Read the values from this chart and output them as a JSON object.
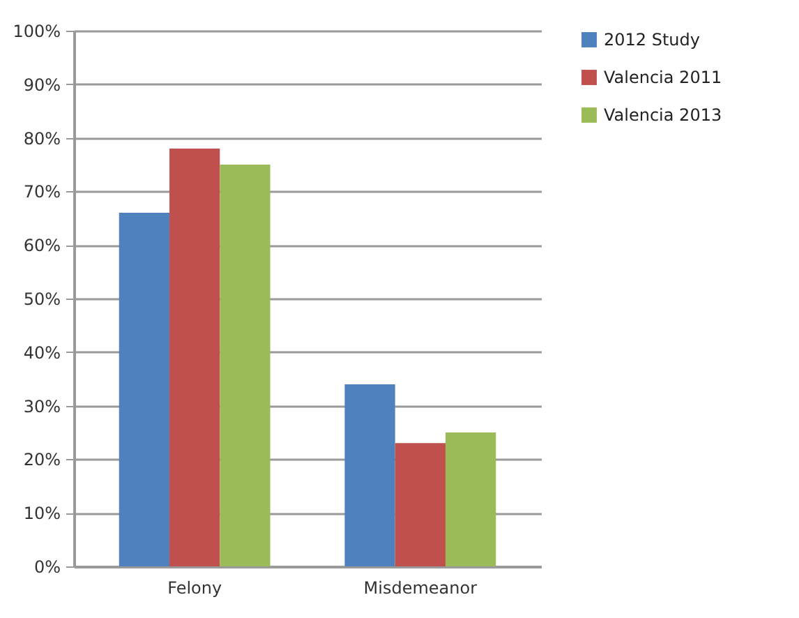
{
  "chart_data": {
    "type": "bar",
    "categories": [
      "Felony",
      "Misdemeanor"
    ],
    "series": [
      {
        "name": "2012 Study",
        "color": "#4f81bd",
        "values": [
          66,
          34
        ]
      },
      {
        "name": "Valencia 2011",
        "color": "#c0504d",
        "values": [
          78,
          23
        ]
      },
      {
        "name": "Valencia 2013",
        "color": "#9bbb59",
        "values": [
          75,
          25
        ]
      }
    ],
    "ylim": [
      0,
      100
    ],
    "yticks": [
      {
        "value": 0,
        "label": "0%"
      },
      {
        "value": 10,
        "label": "10%"
      },
      {
        "value": 20,
        "label": "20%"
      },
      {
        "value": 30,
        "label": "30%"
      },
      {
        "value": 40,
        "label": "40%"
      },
      {
        "value": 50,
        "label": "50%"
      },
      {
        "value": 60,
        "label": "60%"
      },
      {
        "value": 70,
        "label": "70%"
      },
      {
        "value": 80,
        "label": "80%"
      },
      {
        "value": 90,
        "label": "90%"
      },
      {
        "value": 100,
        "label": "100%"
      }
    ],
    "grid": "y",
    "legend": "right"
  }
}
